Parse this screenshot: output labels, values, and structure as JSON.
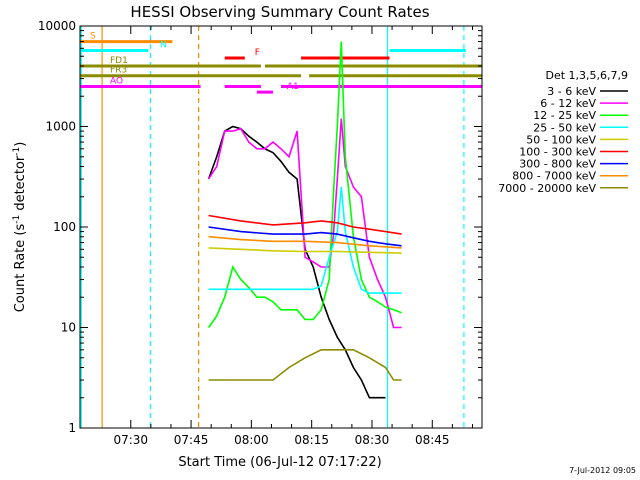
{
  "chart_data": {
    "type": "line",
    "title": "HESSI Observing Summary Count Rates",
    "xlabel": "Start Time (06-Jul-12 07:17:22)",
    "ylabel": "Count Rate (s⁻¹ detector⁻¹)",
    "ylabel_main": "Count Rate (s",
    "ylabel_sup1": "-1",
    "ylabel_mid": " detector",
    "ylabel_sup2": "-1",
    "ylabel_end": ")",
    "x_unit": "minutes after 07:17:22",
    "xlim": [
      0,
      100
    ],
    "ylim": [
      1,
      10000
    ],
    "yscale": "log",
    "x_ticks": [
      {
        "t": 12.63,
        "label": "07:30"
      },
      {
        "t": 27.63,
        "label": "07:45"
      },
      {
        "t": 42.63,
        "label": "08:00"
      },
      {
        "t": 57.63,
        "label": "08:15"
      },
      {
        "t": 72.63,
        "label": "08:30"
      },
      {
        "t": 87.63,
        "label": "08:45"
      }
    ],
    "y_ticks": [
      {
        "v": 1,
        "label": "1"
      },
      {
        "v": 10,
        "label": "10"
      },
      {
        "v": 100,
        "label": "100"
      },
      {
        "v": 1000,
        "label": "1000"
      },
      {
        "v": 10000,
        "label": "10000"
      }
    ],
    "legend_title": "Det 1,3,5,6,7,9",
    "legend_position": "right",
    "timestamp": "7-Jul-2012 09:05",
    "series": [
      {
        "name": "3 - 6 keV",
        "color": "#000000",
        "x": [
          32,
          34,
          36,
          38,
          40,
          42,
          44,
          46,
          48,
          50,
          52,
          54,
          56,
          58,
          60,
          62,
          64,
          66,
          68,
          70,
          72,
          74,
          75,
          76
        ],
        "y": [
          300,
          500,
          900,
          1000,
          950,
          800,
          700,
          600,
          550,
          450,
          350,
          300,
          60,
          40,
          20,
          12,
          8,
          6,
          4,
          3,
          2,
          2,
          2,
          2
        ]
      },
      {
        "name": "6 - 12 keV",
        "color": "#ff00ff",
        "x": [
          32,
          34,
          36,
          38,
          40,
          42,
          44,
          46,
          48,
          50,
          52,
          54,
          56,
          58,
          60,
          62,
          63,
          64,
          65,
          66,
          68,
          70,
          72,
          74,
          76,
          78,
          80
        ],
        "y": [
          300,
          400,
          900,
          900,
          950,
          700,
          600,
          600,
          700,
          600,
          500,
          900,
          50,
          45,
          40,
          40,
          80,
          300,
          1200,
          400,
          250,
          200,
          50,
          30,
          20,
          10,
          10
        ]
      },
      {
        "name": "12 - 25 keV",
        "color": "#00ff00",
        "x": [
          32,
          34,
          36,
          38,
          40,
          42,
          44,
          46,
          48,
          50,
          52,
          54,
          56,
          58,
          60,
          62,
          63,
          64,
          65,
          66,
          68,
          70,
          72,
          74,
          76,
          78,
          80
        ],
        "y": [
          10,
          13,
          20,
          40,
          30,
          25,
          20,
          20,
          18,
          15,
          15,
          15,
          12,
          12,
          15,
          30,
          200,
          1000,
          7000,
          500,
          80,
          30,
          20,
          18,
          16,
          15,
          14
        ]
      },
      {
        "name": "25 - 50 keV",
        "color": "#00ffff",
        "x": [
          32,
          36,
          40,
          44,
          48,
          52,
          56,
          58,
          60,
          62,
          64,
          65,
          66,
          68,
          70,
          72,
          76,
          80
        ],
        "y": [
          24,
          24,
          24,
          24,
          24,
          24,
          24,
          24,
          26,
          50,
          90,
          250,
          90,
          40,
          24,
          22,
          22,
          22
        ]
      },
      {
        "name": "50 - 100 keV",
        "color": "#cccc00",
        "x": [
          32,
          40,
          48,
          56,
          64,
          72,
          80
        ],
        "y": [
          62,
          60,
          58,
          57,
          57,
          56,
          55
        ]
      },
      {
        "name": "100 - 300 keV",
        "color": "#ff0000",
        "x": [
          32,
          40,
          48,
          56,
          60,
          64,
          68,
          72,
          76,
          80
        ],
        "y": [
          130,
          115,
          105,
          110,
          115,
          110,
          100,
          95,
          90,
          85
        ]
      },
      {
        "name": "300 - 800 keV",
        "color": "#0000ff",
        "x": [
          32,
          40,
          48,
          56,
          60,
          64,
          68,
          72,
          76,
          80
        ],
        "y": [
          100,
          90,
          85,
          85,
          88,
          85,
          78,
          72,
          68,
          65
        ]
      },
      {
        "name": "800 - 7000 keV",
        "color": "#ff8c00",
        "x": [
          32,
          40,
          48,
          56,
          64,
          72,
          80
        ],
        "y": [
          80,
          75,
          72,
          72,
          70,
          65,
          62
        ]
      },
      {
        "name": "7000 - 20000 keV",
        "color": "#8b8b00",
        "x": [
          32,
          36,
          40,
          44,
          48,
          52,
          56,
          60,
          64,
          68,
          72,
          76,
          78,
          80
        ],
        "y": [
          3,
          3,
          3,
          3,
          3,
          4,
          5,
          6,
          6,
          6,
          5,
          4,
          3,
          3
        ]
      }
    ],
    "flag_bars": [
      {
        "label": "S",
        "color": "#ff8c00",
        "y": 7000,
        "start": 0,
        "end": 23
      },
      {
        "label": "N",
        "color": "#00ffff",
        "y": 5700,
        "start": 0,
        "end": 17,
        "segments": [
          [
            0,
            17
          ],
          [
            77,
            96
          ]
        ]
      },
      {
        "label": "F",
        "color": "#ff0000",
        "y": 4800,
        "start": 36,
        "end": 41,
        "segments": [
          [
            36,
            41
          ],
          [
            55,
            77
          ]
        ]
      },
      {
        "label": "FD1",
        "color": "#8b8b00",
        "y": 4000,
        "start": 0,
        "end": 96,
        "segments": [
          [
            0,
            45
          ],
          [
            46,
            100
          ]
        ]
      },
      {
        "label": "FR3",
        "color": "#8b8b00",
        "y": 3200,
        "start": 0,
        "end": 96,
        "segments": [
          [
            0,
            55
          ],
          [
            57,
            100
          ]
        ]
      },
      {
        "label": "AO",
        "color": "#ff00ff",
        "y": 2500,
        "start": 0,
        "end": 96,
        "segments": [
          [
            0,
            30
          ],
          [
            36,
            45
          ],
          [
            50,
            100
          ]
        ]
      },
      {
        "label": "A1",
        "color": "#ff00ff",
        "y": 2200,
        "start": 44,
        "end": 48
      }
    ],
    "vlines": [
      {
        "t": 5.5,
        "color": "#ff8c00",
        "style": "solid"
      },
      {
        "t": 17.5,
        "color": "#00ffff",
        "style": "dashed"
      },
      {
        "t": 29.5,
        "color": "#ff8c00",
        "style": "dashed"
      },
      {
        "t": 76.5,
        "color": "#00ffff",
        "style": "solid"
      },
      {
        "t": 95.5,
        "color": "#00ffff",
        "style": "dashed"
      },
      {
        "t": 0.3,
        "color": "#00ffff",
        "style": "solid"
      }
    ]
  }
}
